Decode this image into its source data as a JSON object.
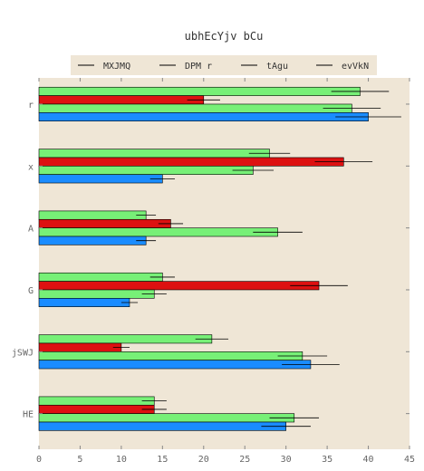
{
  "chart_data": {
    "type": "bar",
    "orientation": "horizontal",
    "title": "ubhEcYjv bCu",
    "xlabel": "",
    "ylabel": "",
    "xlim": [
      0,
      45
    ],
    "xticks": [
      0,
      5,
      10,
      15,
      20,
      25,
      30,
      35,
      40,
      45
    ],
    "grid": false,
    "legend_position": "top-center",
    "categories": [
      "r",
      "x",
      "A",
      "G",
      "jSWJ",
      "HE"
    ],
    "series": [
      {
        "name": "MXJMQ",
        "color": "#77f077",
        "values": [
          39,
          28,
          13,
          15,
          21,
          14
        ],
        "errors": [
          3.5,
          2.5,
          1.2,
          1.5,
          2.0,
          1.5
        ]
      },
      {
        "name": "DPM r",
        "color": "#dd1111",
        "values": [
          20,
          37,
          16,
          34,
          10,
          14
        ],
        "errors": [
          2.0,
          3.5,
          1.5,
          3.5,
          1.0,
          1.5
        ]
      },
      {
        "name": "tAgu",
        "color": "#77f077",
        "values": [
          38,
          26,
          29,
          14,
          32,
          31
        ],
        "errors": [
          3.5,
          2.5,
          3.0,
          1.5,
          3.0,
          3.0
        ]
      },
      {
        "name": "evVkN",
        "color": "#1a8cff",
        "values": [
          40,
          15,
          13,
          11,
          33,
          30
        ],
        "errors": [
          4.0,
          1.5,
          1.2,
          1.0,
          3.5,
          3.0
        ]
      }
    ]
  }
}
